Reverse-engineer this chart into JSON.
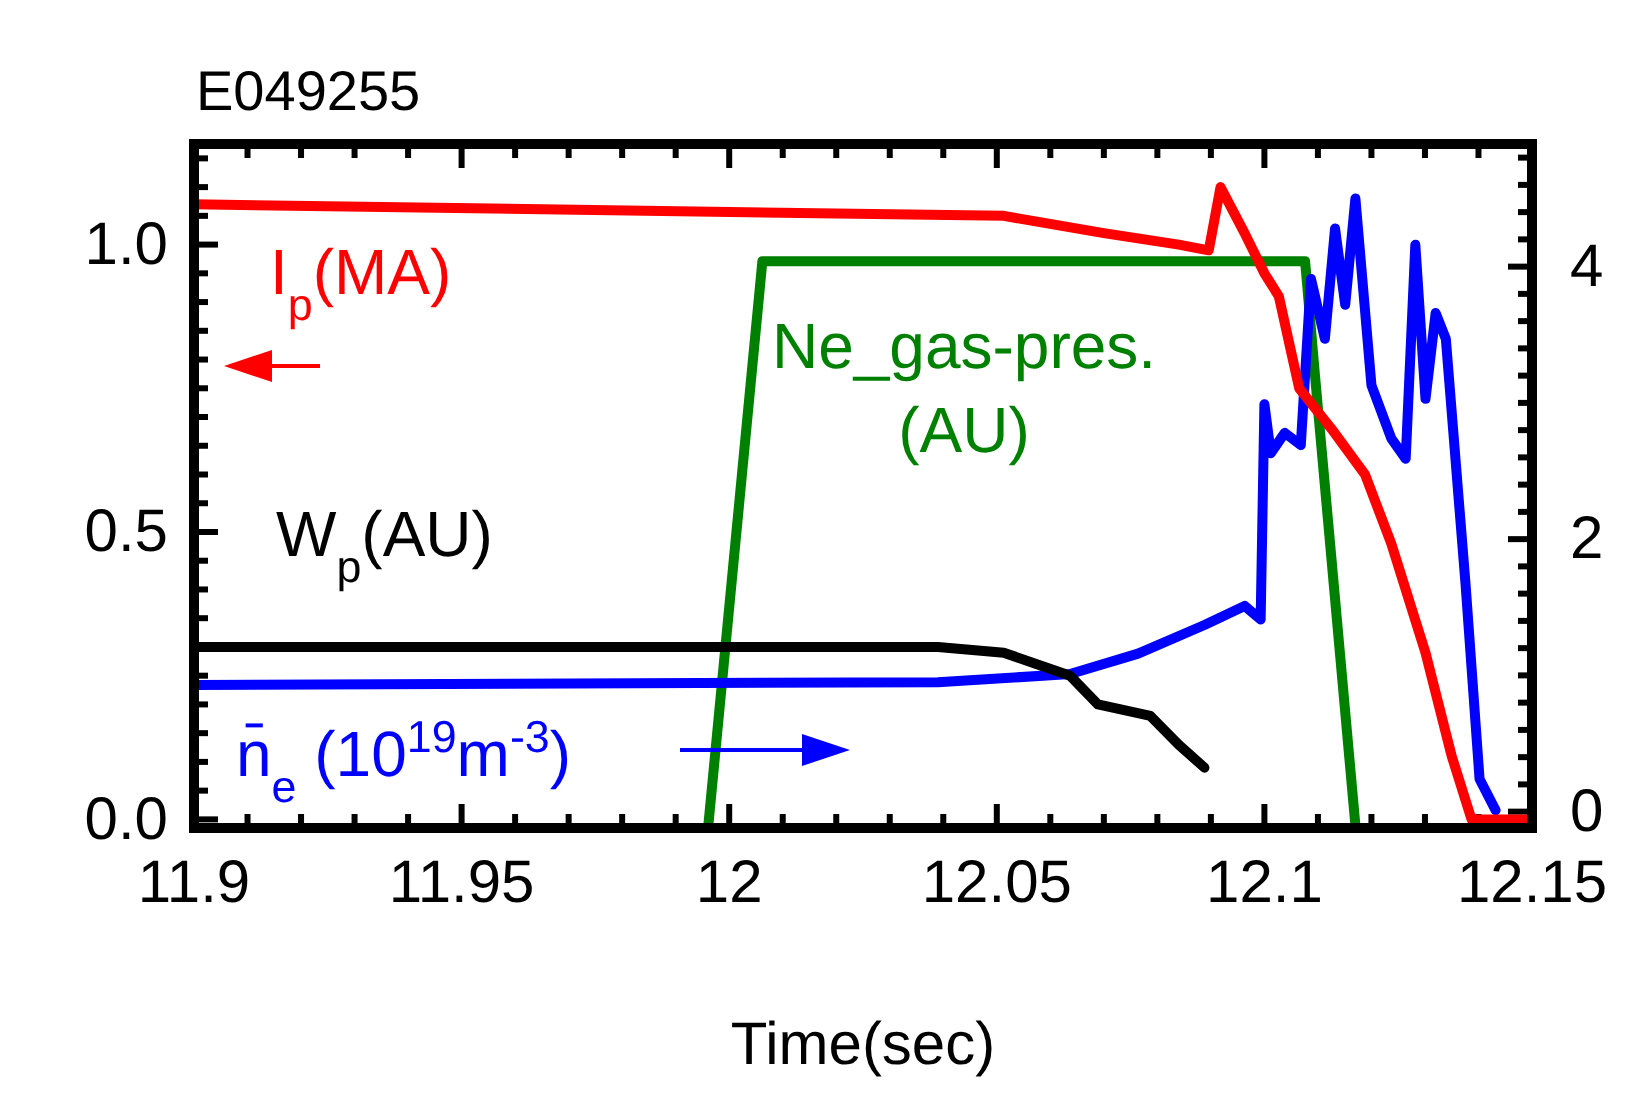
{
  "chart_data": {
    "type": "line",
    "title": "E049255",
    "xlabel": "Time(sec)",
    "xlim": [
      11.9,
      12.15
    ],
    "ylim": [
      -0.015,
      1.175
    ],
    "y2lim": [
      -0.12,
      4.9
    ],
    "xticks": [
      11.9,
      {
        "value": 11.91,
        "label": null
      },
      {
        "value": 11.92,
        "label": null
      },
      {
        "value": 11.93,
        "label": null
      },
      {
        "value": 11.94,
        "label": null
      },
      11.95,
      {
        "value": 11.96,
        "label": null
      },
      {
        "value": 11.97,
        "label": null
      },
      {
        "value": 11.98,
        "label": null
      },
      {
        "value": 11.99,
        "label": null
      },
      12,
      {
        "value": 12.01,
        "label": null
      },
      {
        "value": 12.02,
        "label": null
      },
      {
        "value": 12.03,
        "label": null
      },
      {
        "value": 12.04,
        "label": null
      },
      12.05,
      {
        "value": 12.06,
        "label": null
      },
      {
        "value": 12.07,
        "label": null
      },
      {
        "value": 12.08,
        "label": null
      },
      {
        "value": 12.09,
        "label": null
      },
      12.1,
      {
        "value": 12.11,
        "label": null
      },
      {
        "value": 12.12,
        "label": null
      },
      {
        "value": 12.13,
        "label": null
      },
      {
        "value": 12.14,
        "label": null
      },
      12.15
    ],
    "yticks": [
      {
        "value": 0,
        "label": "0.0"
      },
      {
        "value": 0.05,
        "label": null
      },
      {
        "value": 0.1,
        "label": null
      },
      {
        "value": 0.15,
        "label": null
      },
      {
        "value": 0.2,
        "label": null
      },
      {
        "value": 0.25,
        "label": null
      },
      {
        "value": 0.3,
        "label": null
      },
      {
        "value": 0.35,
        "label": null
      },
      {
        "value": 0.4,
        "label": null
      },
      {
        "value": 0.45,
        "label": null
      },
      0.5,
      {
        "value": 0.55,
        "label": null
      },
      {
        "value": 0.6,
        "label": null
      },
      {
        "value": 0.65,
        "label": null
      },
      {
        "value": 0.7,
        "label": null
      },
      {
        "value": 0.75,
        "label": null
      },
      {
        "value": 0.8,
        "label": null
      },
      {
        "value": 0.85,
        "label": null
      },
      {
        "value": 0.9,
        "label": null
      },
      {
        "value": 0.95,
        "label": null
      },
      {
        "value": 1,
        "label": "1.0"
      },
      {
        "value": 1.05,
        "label": null
      },
      {
        "value": 1.1,
        "label": null
      },
      {
        "value": 1.15,
        "label": null
      }
    ],
    "y2ticks": [
      0,
      {
        "value": 0.2,
        "label": null
      },
      {
        "value": 0.4,
        "label": null
      },
      {
        "value": 0.6,
        "label": null
      },
      {
        "value": 0.8,
        "label": null
      },
      {
        "value": 1,
        "label": null
      },
      {
        "value": 1.2,
        "label": null
      },
      {
        "value": 1.4,
        "label": null
      },
      {
        "value": 1.6,
        "label": null
      },
      {
        "value": 1.8,
        "label": null
      },
      2,
      {
        "value": 2.2,
        "label": null
      },
      {
        "value": 2.4,
        "label": null
      },
      {
        "value": 2.6,
        "label": null
      },
      {
        "value": 2.8,
        "label": null
      },
      {
        "value": 3,
        "label": null
      },
      {
        "value": 3.2,
        "label": null
      },
      {
        "value": 3.4,
        "label": null
      },
      {
        "value": 3.6,
        "label": null
      },
      {
        "value": 3.8,
        "label": null
      },
      4,
      {
        "value": 4.2,
        "label": null
      },
      {
        "value": 4.4,
        "label": null
      },
      {
        "value": 4.6,
        "label": null
      },
      {
        "value": 4.8,
        "label": null
      }
    ],
    "grid": false,
    "legend": "left",
    "marker": "none",
    "line_style": "solid",
    "series": [
      {
        "name": "I$_{p}$(MA)",
        "color": "#ff0000",
        "x": [
          11.9,
          12.0513,
          12.07,
          12.084,
          12.0896,
          12.0918,
          12.0963,
          12.1,
          12.1027,
          12.1065,
          12.1125,
          12.1188,
          12.1237,
          12.1301,
          12.135,
          12.1387,
          12.1497
        ],
        "values": [
          1.07,
          1.05,
          1.02,
          1.0,
          0.99,
          1.1,
          1.02,
          0.95,
          0.91,
          0.75,
          0.68,
          0.6,
          0.48,
          0.29,
          0.11,
          0,
          0
        ]
      },
      {
        "name": "W$_{p}$(AU)",
        "color": "#000000",
        "x": [
          11.9,
          12.039,
          12.0513,
          12.0637,
          12.0689,
          12.0787,
          12.084,
          12.0888
        ],
        "values": [
          0.3,
          0.3,
          0.29,
          0.25,
          0.2,
          0.18,
          0.13,
          0.09
        ]
      },
      {
        "name": "n̄$_{e}$ (10$^{19}$m$^{-3}$)",
        "color": "#0000ff",
        "axis": "y2",
        "x": [
          11.9,
          12.039,
          12.0637,
          12.0764,
          12.0888,
          12.0963,
          12.0993,
          12.1,
          12.1012,
          12.1038,
          12.1068,
          12.1087,
          12.1113,
          12.1132,
          12.1151,
          12.117,
          12.12,
          12.1237,
          12.1264,
          12.1282,
          12.1301,
          12.132,
          12.1339,
          12.1376,
          12.1402,
          12.1432
        ],
        "values": [
          0.93,
          0.95,
          1.01,
          1.16,
          1.37,
          1.51,
          1.41,
          2.99,
          2.63,
          2.78,
          2.69,
          3.91,
          3.47,
          4.28,
          3.72,
          4.5,
          3.13,
          2.74,
          2.59,
          4.16,
          3.03,
          3.66,
          3.47,
          1.66,
          0.24,
          0.01
        ]
      },
      {
        "name": "Ne_gas-pres. (AU)",
        "color": "#008000",
        "axis": "y2",
        "x": [
          11.9961,
          12.0062,
          12.1076,
          12.1095,
          12.117
        ],
        "values": [
          -0.1,
          4.04,
          4.04,
          3.18,
          -0.1
        ]
      }
    ]
  }
}
